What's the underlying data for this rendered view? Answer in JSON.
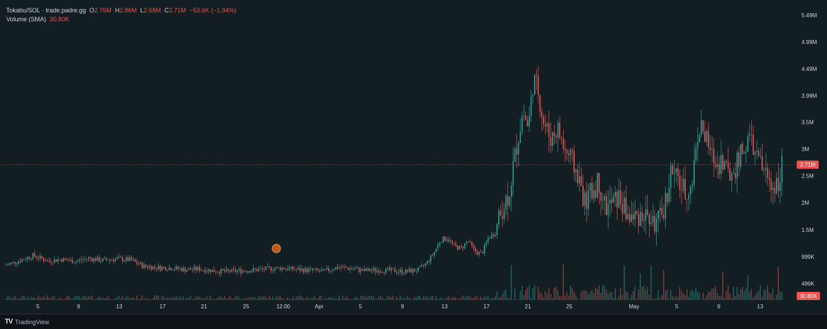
{
  "legend": {
    "symbol": "Tokabu/SOL · trade.padre.gg",
    "open_label": "O",
    "open": "2.76M",
    "high_label": "H",
    "high": "2.86M",
    "low_label": "L",
    "low": "2.68M",
    "close_label": "C",
    "close": "2.71M",
    "change": "−53.6K (−1.94%)",
    "volume_label": "Volume (SMA)",
    "volume": "30.80K"
  },
  "footer": {
    "brand": "TradingView"
  },
  "colors": {
    "up": "#26a69a",
    "down": "#ef5350",
    "bg": "#131e22",
    "text": "#d1d4dc",
    "grid": "#1f2a2e"
  },
  "chart_data": {
    "type": "candlestick",
    "y_axis_labels": [
      "5.49M",
      "4.99M",
      "4.49M",
      "3.99M",
      "3.5M",
      "3M",
      "2.5M",
      "2M",
      "1.5M",
      "999K",
      "499K"
    ],
    "y_ticks": [
      5490000,
      4990000,
      4490000,
      3990000,
      3500000,
      3000000,
      2500000,
      2000000,
      1500000,
      999000,
      499000
    ],
    "x_axis_labels": [
      "5",
      "9",
      "13",
      "17",
      "21",
      "25",
      "12:00",
      "Apr",
      "5",
      "9",
      "13",
      "17",
      "21",
      "25",
      "May",
      "5",
      "9",
      "13"
    ],
    "price_marker": {
      "value": 2710000,
      "label": "2.71M"
    },
    "volume_marker": {
      "label": "30.80K"
    },
    "close_series": [
      [
        0,
        0.84
      ],
      [
        20,
        0.93
      ],
      [
        40,
        1.02
      ],
      [
        60,
        0.92
      ],
      [
        80,
        0.95
      ],
      [
        100,
        0.91
      ],
      [
        120,
        0.97
      ],
      [
        140,
        0.93
      ],
      [
        160,
        0.96
      ],
      [
        180,
        0.94
      ],
      [
        200,
        0.82
      ],
      [
        220,
        0.8
      ],
      [
        240,
        0.79
      ],
      [
        260,
        0.76
      ],
      [
        280,
        0.77
      ],
      [
        300,
        0.74
      ],
      [
        320,
        0.72
      ],
      [
        340,
        0.74
      ],
      [
        360,
        0.75
      ],
      [
        380,
        0.77
      ],
      [
        400,
        0.79
      ],
      [
        420,
        0.76
      ],
      [
        440,
        0.75
      ],
      [
        460,
        0.72
      ],
      [
        480,
        0.8
      ],
      [
        500,
        0.78
      ],
      [
        520,
        0.74
      ],
      [
        540,
        0.75
      ],
      [
        560,
        0.74
      ],
      [
        580,
        0.72
      ],
      [
        600,
        0.76
      ],
      [
        610,
        0.88
      ],
      [
        620,
        1.05
      ],
      [
        630,
        1.3
      ],
      [
        640,
        1.35
      ],
      [
        650,
        1.2
      ],
      [
        660,
        1.15
      ],
      [
        670,
        1.3
      ],
      [
        680,
        1.1
      ],
      [
        690,
        1.05
      ],
      [
        700,
        1.35
      ],
      [
        710,
        1.45
      ],
      [
        720,
        1.9
      ],
      [
        730,
        2.2
      ],
      [
        740,
        3.0
      ],
      [
        750,
        3.7
      ],
      [
        758,
        3.4
      ],
      [
        765,
        4.3
      ],
      [
        772,
        4.1
      ],
      [
        780,
        3.5
      ],
      [
        790,
        3.2
      ],
      [
        800,
        3.4
      ],
      [
        810,
        3.0
      ],
      [
        820,
        2.8
      ],
      [
        830,
        2.5
      ],
      [
        840,
        2.0
      ],
      [
        850,
        2.2
      ],
      [
        860,
        2.4
      ],
      [
        870,
        1.9
      ],
      [
        880,
        2.0
      ],
      [
        890,
        2.1
      ],
      [
        900,
        1.8
      ],
      [
        910,
        1.7
      ],
      [
        920,
        1.8
      ],
      [
        930,
        1.75
      ],
      [
        940,
        1.6
      ],
      [
        950,
        1.7
      ],
      [
        958,
        2.1
      ],
      [
        965,
        2.6
      ],
      [
        975,
        2.4
      ],
      [
        985,
        2.2
      ],
      [
        995,
        2.3
      ],
      [
        1003,
        3.3
      ],
      [
        1010,
        3.4
      ],
      [
        1020,
        3.0
      ],
      [
        1030,
        2.7
      ],
      [
        1040,
        2.8
      ],
      [
        1050,
        2.5
      ],
      [
        1060,
        2.7
      ],
      [
        1070,
        3.0
      ],
      [
        1080,
        3.2
      ],
      [
        1090,
        2.8
      ],
      [
        1100,
        2.6
      ],
      [
        1110,
        2.3
      ],
      [
        1120,
        2.4
      ],
      [
        1128,
        2.85
      ],
      [
        1132,
        2.71
      ]
    ]
  }
}
